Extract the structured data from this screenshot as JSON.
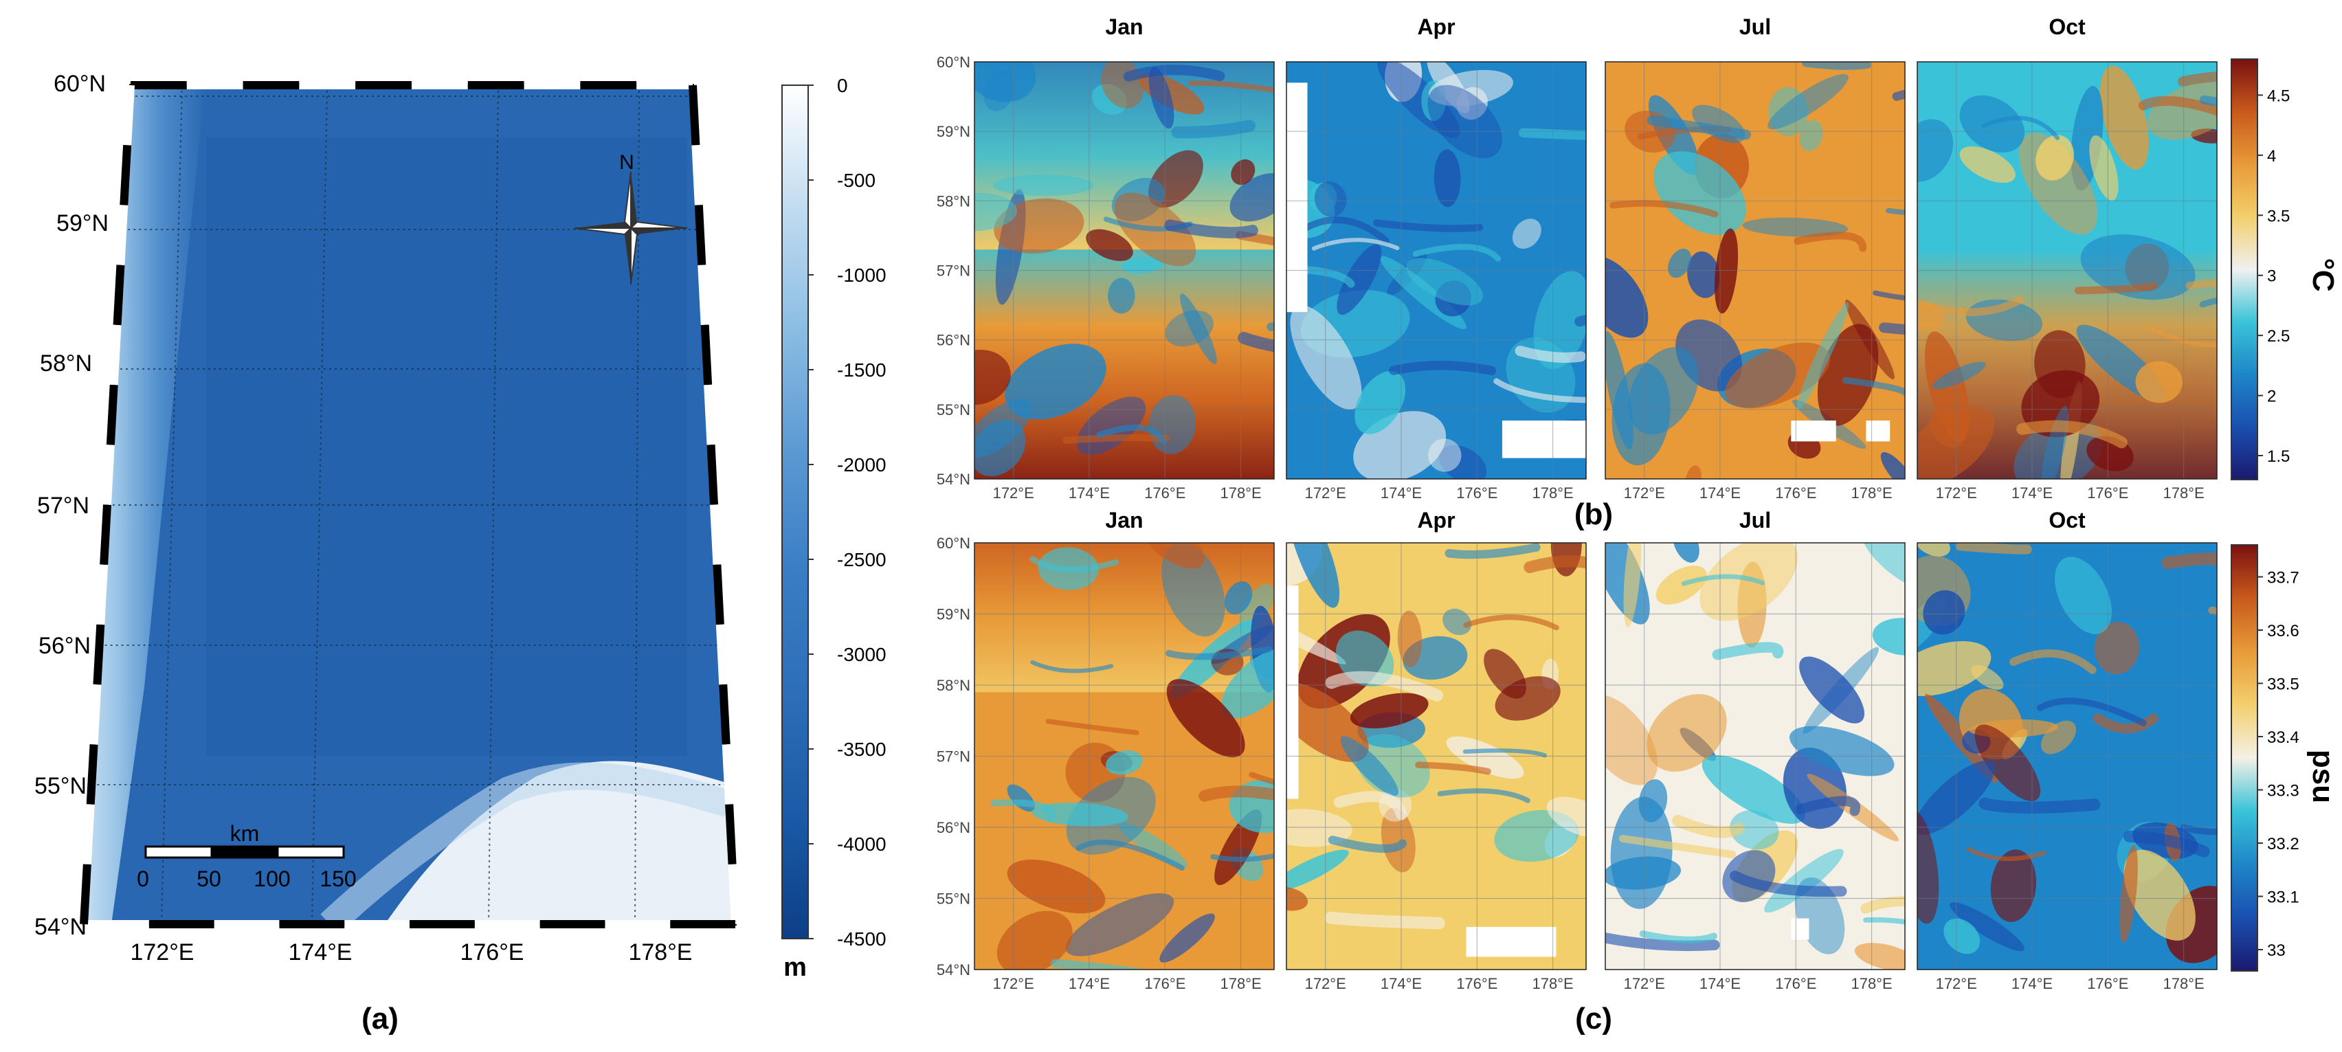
{
  "colors": {
    "depth_scale": [
      "#0c3f86",
      "#1a5aa6",
      "#2d6eb8",
      "#3a7dc4",
      "#5b99d2",
      "#8bbde3",
      "#c2dcf0",
      "#ffffff"
    ],
    "temp_scale": [
      "#1a1a6e",
      "#1a4fb0",
      "#1e86c8",
      "#3ac3d8",
      "#f0f0f0",
      "#f3cf6c",
      "#e89a38",
      "#c85a1c",
      "#7a1010"
    ],
    "sal_scale": [
      "#1a1a6e",
      "#1a4fb0",
      "#1e86c8",
      "#3ac3d8",
      "#f4f0e6",
      "#f3cf6c",
      "#e89a38",
      "#c85a1c",
      "#7a1010"
    ],
    "frame": "#000000"
  },
  "panel_a": {
    "label": "(a)",
    "lat_labels": [
      "60°N",
      "59°N",
      "58°N",
      "57°N",
      "56°N",
      "55°N",
      "54°N"
    ],
    "lon_labels": [
      "172°E",
      "174°E",
      "176°E",
      "178°E"
    ],
    "compass_label": "N",
    "scale_bar": {
      "unit": "km",
      "ticks": [
        "0",
        "50",
        "100",
        "150"
      ]
    },
    "colorbar": {
      "unit": "m",
      "ticks": [
        "0",
        "-500",
        "-1000",
        "-1500",
        "-2000",
        "-2500",
        "-3000",
        "-3500",
        "-4000",
        "-4500"
      ],
      "range": [
        -4500,
        0
      ]
    }
  },
  "panel_b": {
    "label": "(b)",
    "unit": "°C",
    "months": [
      "Jan",
      "Apr",
      "Jul",
      "Oct"
    ],
    "colorbar_ticks": [
      "4.5",
      "4",
      "3.5",
      "3",
      "2.5",
      "2",
      "1.5"
    ],
    "colorbar_range": [
      1.3,
      4.8
    ]
  },
  "panel_c": {
    "label": "(c)",
    "unit": "psu",
    "months": [
      "Jan",
      "Apr",
      "Jul",
      "Oct"
    ],
    "colorbar_ticks": [
      "33.7",
      "33.6",
      "33.5",
      "33.4",
      "33.3",
      "33.2",
      "33.1",
      "33"
    ],
    "colorbar_range": [
      32.96,
      33.76
    ]
  },
  "small_map_axes": {
    "lat_labels": [
      "60°N",
      "59°N",
      "58°N",
      "57°N",
      "56°N",
      "55°N",
      "54°N"
    ],
    "lon_labels": [
      "172°E",
      "174°E",
      "176°E",
      "178°E"
    ]
  }
}
